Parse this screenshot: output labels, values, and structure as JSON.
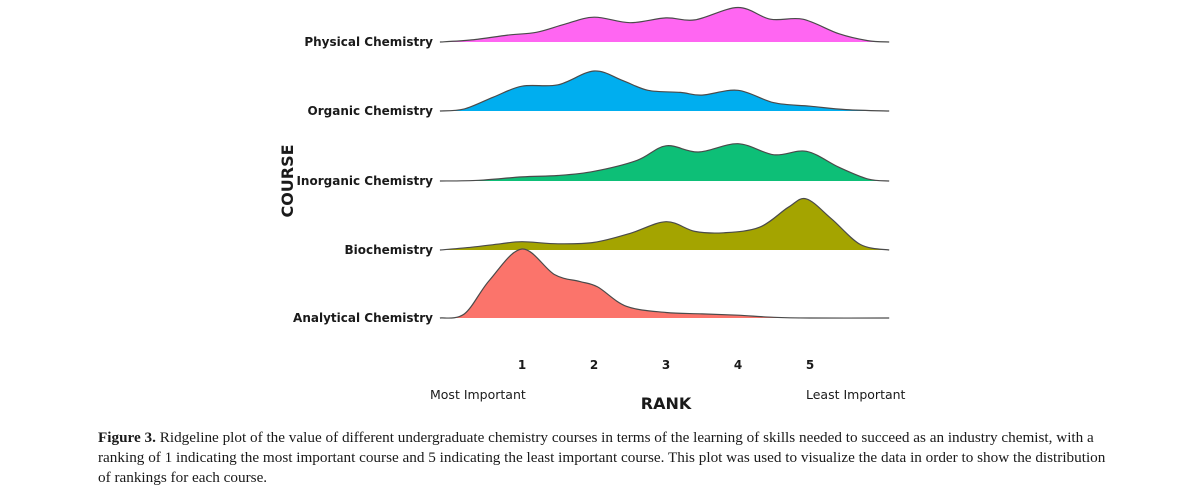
{
  "chart_data": {
    "type": "ridgeline",
    "xlabel": "RANK",
    "ylabel": "COURSE",
    "x_ticks": [
      1,
      2,
      3,
      4,
      5
    ],
    "xlim": [
      -0.14,
      6.1
    ],
    "x_end_labels": {
      "left": "Most Important",
      "right": "Least Important"
    },
    "grid": false,
    "legend": "none",
    "series": [
      {
        "name": "Physical Chemistry",
        "color": "#ff66f2",
        "points": [
          [
            -0.14,
            0
          ],
          [
            0.3,
            0.03
          ],
          [
            0.8,
            0.1
          ],
          [
            1.2,
            0.14
          ],
          [
            1.6,
            0.26
          ],
          [
            2.0,
            0.36
          ],
          [
            2.5,
            0.28
          ],
          [
            3.0,
            0.35
          ],
          [
            3.4,
            0.32
          ],
          [
            4.0,
            0.5
          ],
          [
            4.45,
            0.33
          ],
          [
            4.9,
            0.33
          ],
          [
            5.4,
            0.12
          ],
          [
            5.8,
            0.02
          ],
          [
            6.1,
            0
          ]
        ]
      },
      {
        "name": "Organic Chemistry",
        "color": "#00aeef",
        "points": [
          [
            -0.14,
            0
          ],
          [
            0.2,
            0.03
          ],
          [
            0.6,
            0.2
          ],
          [
            1.0,
            0.36
          ],
          [
            1.5,
            0.38
          ],
          [
            2.0,
            0.58
          ],
          [
            2.4,
            0.44
          ],
          [
            2.75,
            0.3
          ],
          [
            3.2,
            0.27
          ],
          [
            3.5,
            0.23
          ],
          [
            4.0,
            0.3
          ],
          [
            4.5,
            0.12
          ],
          [
            5.0,
            0.07
          ],
          [
            5.5,
            0.02
          ],
          [
            6.1,
            0
          ]
        ]
      },
      {
        "name": "Inorganic Chemistry",
        "color": "#0dbf77",
        "points": [
          [
            -0.14,
            0
          ],
          [
            0.4,
            0.01
          ],
          [
            1.0,
            0.06
          ],
          [
            1.5,
            0.08
          ],
          [
            2.0,
            0.14
          ],
          [
            2.6,
            0.3
          ],
          [
            3.0,
            0.51
          ],
          [
            3.45,
            0.42
          ],
          [
            4.0,
            0.54
          ],
          [
            4.5,
            0.38
          ],
          [
            4.95,
            0.43
          ],
          [
            5.4,
            0.2
          ],
          [
            5.8,
            0.03
          ],
          [
            6.1,
            0
          ]
        ]
      },
      {
        "name": "Biochemistry",
        "color": "#a4a400",
        "points": [
          [
            -0.14,
            0
          ],
          [
            0.3,
            0.04
          ],
          [
            0.7,
            0.09
          ],
          [
            1.0,
            0.12
          ],
          [
            1.5,
            0.09
          ],
          [
            2.0,
            0.11
          ],
          [
            2.5,
            0.24
          ],
          [
            3.0,
            0.41
          ],
          [
            3.4,
            0.27
          ],
          [
            3.8,
            0.25
          ],
          [
            4.3,
            0.33
          ],
          [
            4.7,
            0.62
          ],
          [
            4.95,
            0.74
          ],
          [
            5.3,
            0.45
          ],
          [
            5.7,
            0.08
          ],
          [
            6.1,
            0
          ]
        ]
      },
      {
        "name": "Analytical Chemistry",
        "color": "#fb746b",
        "points": [
          [
            -0.14,
            0
          ],
          [
            0.2,
            0.06
          ],
          [
            0.55,
            0.55
          ],
          [
            1.0,
            1.0
          ],
          [
            1.45,
            0.63
          ],
          [
            1.8,
            0.53
          ],
          [
            2.05,
            0.45
          ],
          [
            2.45,
            0.17
          ],
          [
            3.0,
            0.08
          ],
          [
            3.5,
            0.06
          ],
          [
            4.0,
            0.04
          ],
          [
            4.5,
            0.01
          ],
          [
            5.0,
            0
          ],
          [
            6.1,
            0
          ]
        ]
      }
    ]
  },
  "caption": {
    "label": "Figure 3.",
    "text": " Ridgeline plot of the value of different undergraduate chemistry courses in terms of the learning of skills needed to succeed as an industry chemist, with a ranking of 1 indicating the most important course and 5 indicating the least important course. This plot was used to visualize the data in order to show the distribution of rankings for each course."
  }
}
